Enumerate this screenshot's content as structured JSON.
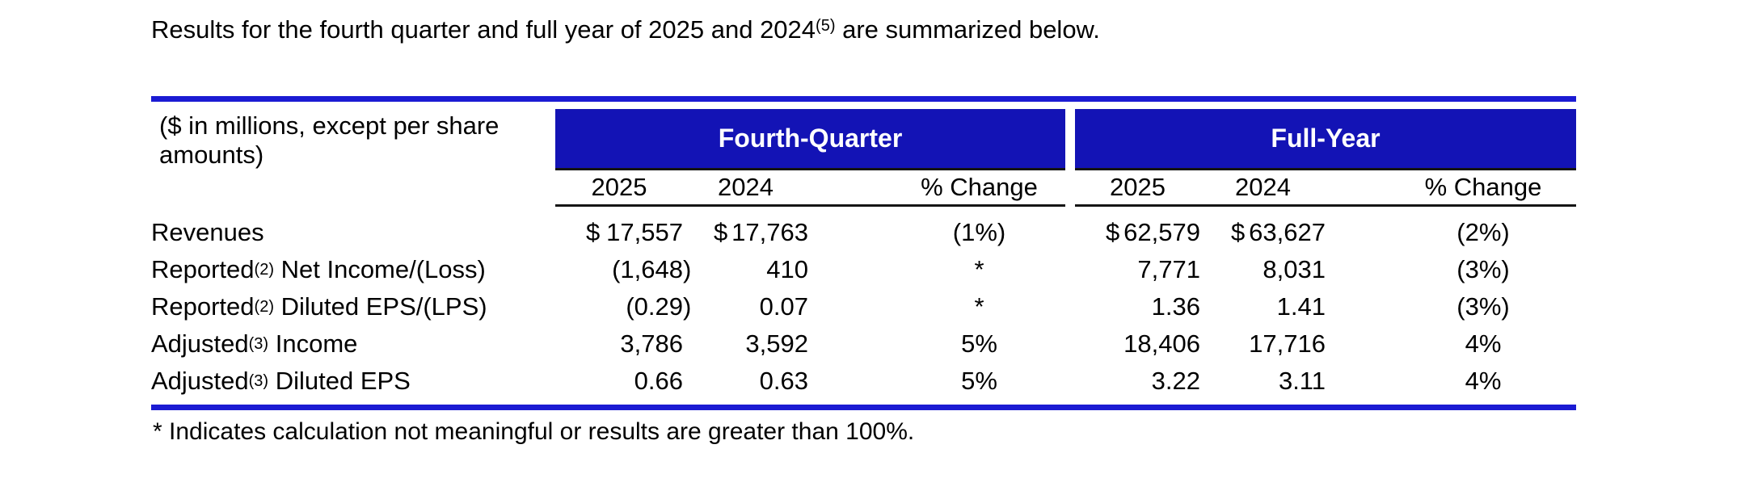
{
  "intro": {
    "text_before_sup": "Results for the fourth quarter and full year of 2025 and 2024",
    "sup": "(5)",
    "text_after_sup": " are summarized below."
  },
  "table": {
    "unit_note_line1": "($ in millions, except per share",
    "unit_note_line2": "amounts)",
    "group_headers": {
      "fourth_quarter": "Fourth-Quarter",
      "full_year": "Full-Year"
    },
    "column_headers": {
      "y2025": "2025",
      "y2024": "2024",
      "pct_change": "% Change"
    },
    "rows": [
      {
        "label": {
          "pre": "Revenues",
          "sup": "",
          "post": ""
        },
        "fq": {
          "cur1": "$",
          "v2025": "17,557",
          "cur2": "$",
          "v2024": "17,763",
          "chg": "(1%)"
        },
        "fy": {
          "cur1": "$",
          "v2025": "62,579",
          "cur2": "$",
          "v2024": "63,627",
          "chg": "(2%)"
        }
      },
      {
        "label": {
          "pre": "Reported",
          "sup": "(2)",
          "post": " Net Income/(Loss)"
        },
        "fq": {
          "cur1": "",
          "v2025": "(1,648)",
          "cur2": "",
          "v2024": "410",
          "chg": "*"
        },
        "fy": {
          "cur1": "",
          "v2025": "7,771",
          "cur2": "",
          "v2024": "8,031",
          "chg": "(3%)"
        }
      },
      {
        "label": {
          "pre": "Reported",
          "sup": "(2)",
          "post": " Diluted EPS/(LPS)"
        },
        "fq": {
          "cur1": "",
          "v2025": "(0.29)",
          "cur2": "",
          "v2024": "0.07",
          "chg": "*"
        },
        "fy": {
          "cur1": "",
          "v2025": "1.36",
          "cur2": "",
          "v2024": "1.41",
          "chg": "(3%)"
        }
      },
      {
        "label": {
          "pre": "Adjusted",
          "sup": "(3)",
          "post": " Income"
        },
        "fq": {
          "cur1": "",
          "v2025": "3,786",
          "cur2": "",
          "v2024": "3,592",
          "chg": "5%"
        },
        "fy": {
          "cur1": "",
          "v2025": "18,406",
          "cur2": "",
          "v2024": "17,716",
          "chg": "4%"
        }
      },
      {
        "label": {
          "pre": "Adjusted",
          "sup": "(3)",
          "post": " Diluted EPS"
        },
        "fq": {
          "cur1": "",
          "v2025": "0.66",
          "cur2": "",
          "v2024": "0.63",
          "chg": "5%"
        },
        "fy": {
          "cur1": "",
          "v2025": "3.22",
          "cur2": "",
          "v2024": "3.11",
          "chg": "4%"
        }
      }
    ],
    "footnote": "* Indicates calculation not meaningful or results are greater than 100%."
  },
  "colors": {
    "bar_blue": "#1313B5",
    "rule_blue": "#1B1BD3",
    "line_black": "#141414",
    "text": "#000000"
  }
}
